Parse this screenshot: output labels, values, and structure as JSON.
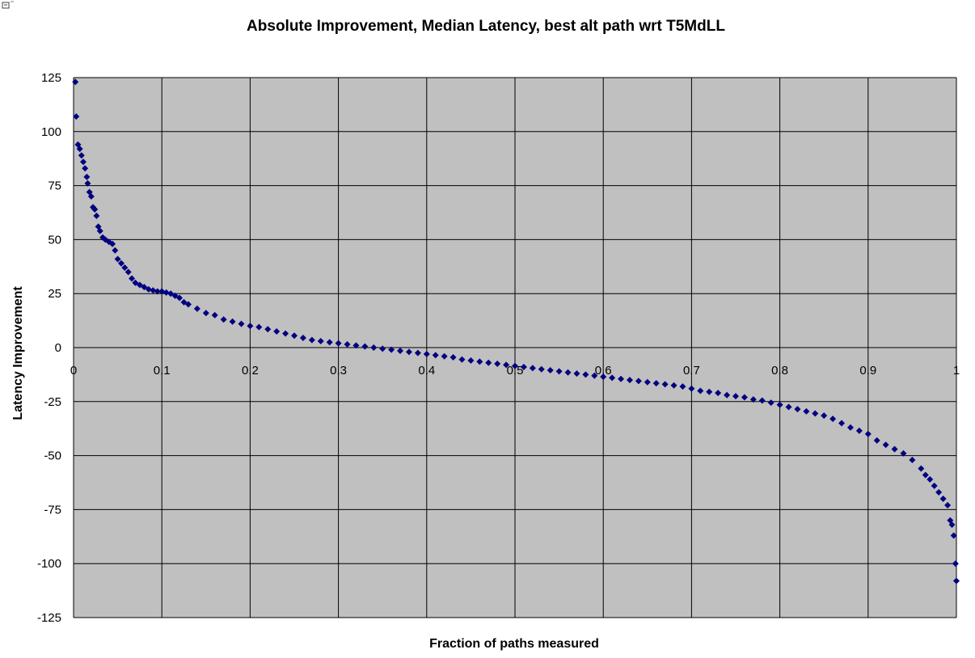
{
  "chart_data": {
    "type": "scatter",
    "title": "Absolute Improvement, Median Latency, best alt path wrt T5MdLL",
    "xlabel": "Fraction of paths measured",
    "ylabel": "Latency Improvement",
    "xlim": [
      0,
      1
    ],
    "ylim": [
      -125,
      125
    ],
    "x_ticks": [
      0,
      0.1,
      0.2,
      0.3,
      0.4,
      0.5,
      0.6,
      0.7,
      0.8,
      0.9,
      1
    ],
    "x_tick_labels": [
      "0",
      "0.1",
      "0.2",
      "0.3",
      "0.4",
      "0.5",
      "0.6",
      "0.7",
      "0.8",
      "0.9",
      "1"
    ],
    "y_ticks": [
      125,
      100,
      75,
      50,
      25,
      0,
      -25,
      -50,
      -75,
      -100,
      -125
    ],
    "y_tick_labels": [
      "125",
      "100",
      "75",
      "50",
      "25",
      "0",
      "-25",
      "-50",
      "-75",
      "-100",
      "-125"
    ],
    "grid": true,
    "legend": "none",
    "plot_background": "#C0C0C0",
    "marker_color": "#000080",
    "marker": "diamond",
    "points": [
      [
        0.002,
        123
      ],
      [
        0.003,
        107
      ],
      [
        0.005,
        94
      ],
      [
        0.007,
        92
      ],
      [
        0.009,
        89
      ],
      [
        0.011,
        86
      ],
      [
        0.013,
        83
      ],
      [
        0.015,
        79
      ],
      [
        0.016,
        76
      ],
      [
        0.018,
        72
      ],
      [
        0.02,
        70
      ],
      [
        0.022,
        65
      ],
      [
        0.024,
        64
      ],
      [
        0.026,
        61
      ],
      [
        0.028,
        56
      ],
      [
        0.03,
        54
      ],
      [
        0.033,
        51
      ],
      [
        0.036,
        50
      ],
      [
        0.04,
        49
      ],
      [
        0.044,
        48
      ],
      [
        0.047,
        45
      ],
      [
        0.05,
        41
      ],
      [
        0.054,
        39
      ],
      [
        0.058,
        37
      ],
      [
        0.062,
        35
      ],
      [
        0.066,
        32
      ],
      [
        0.07,
        30
      ],
      [
        0.075,
        29
      ],
      [
        0.08,
        28
      ],
      [
        0.085,
        27
      ],
      [
        0.09,
        26.5
      ],
      [
        0.095,
        26
      ],
      [
        0.1,
        26
      ],
      [
        0.105,
        25.5
      ],
      [
        0.11,
        25
      ],
      [
        0.115,
        24
      ],
      [
        0.12,
        23
      ],
      [
        0.125,
        21
      ],
      [
        0.13,
        20
      ],
      [
        0.14,
        18
      ],
      [
        0.15,
        16
      ],
      [
        0.16,
        15
      ],
      [
        0.17,
        13
      ],
      [
        0.18,
        12
      ],
      [
        0.19,
        11
      ],
      [
        0.2,
        10
      ],
      [
        0.21,
        9.5
      ],
      [
        0.22,
        8.5
      ],
      [
        0.23,
        7.5
      ],
      [
        0.24,
        6.5
      ],
      [
        0.25,
        5.5
      ],
      [
        0.26,
        4.5
      ],
      [
        0.27,
        3.5
      ],
      [
        0.28,
        3
      ],
      [
        0.29,
        2.5
      ],
      [
        0.3,
        2
      ],
      [
        0.31,
        1.5
      ],
      [
        0.32,
        1
      ],
      [
        0.33,
        0.5
      ],
      [
        0.34,
        0
      ],
      [
        0.35,
        -0.5
      ],
      [
        0.36,
        -1
      ],
      [
        0.37,
        -1.5
      ],
      [
        0.38,
        -2
      ],
      [
        0.39,
        -2.5
      ],
      [
        0.4,
        -3
      ],
      [
        0.41,
        -3.5
      ],
      [
        0.42,
        -4
      ],
      [
        0.43,
        -4.5
      ],
      [
        0.44,
        -5.5
      ],
      [
        0.45,
        -6
      ],
      [
        0.46,
        -6.5
      ],
      [
        0.47,
        -7
      ],
      [
        0.48,
        -7.5
      ],
      [
        0.49,
        -8
      ],
      [
        0.5,
        -8.5
      ],
      [
        0.51,
        -9
      ],
      [
        0.52,
        -9.5
      ],
      [
        0.53,
        -10
      ],
      [
        0.54,
        -10.5
      ],
      [
        0.55,
        -11
      ],
      [
        0.56,
        -11.5
      ],
      [
        0.57,
        -12
      ],
      [
        0.58,
        -12.5
      ],
      [
        0.59,
        -13
      ],
      [
        0.6,
        -13.5
      ],
      [
        0.61,
        -14
      ],
      [
        0.62,
        -14.5
      ],
      [
        0.63,
        -15
      ],
      [
        0.64,
        -15.5
      ],
      [
        0.65,
        -16
      ],
      [
        0.66,
        -16.5
      ],
      [
        0.67,
        -17
      ],
      [
        0.68,
        -17.5
      ],
      [
        0.69,
        -18
      ],
      [
        0.7,
        -19
      ],
      [
        0.71,
        -20
      ],
      [
        0.72,
        -20.5
      ],
      [
        0.73,
        -21
      ],
      [
        0.74,
        -22
      ],
      [
        0.75,
        -22.5
      ],
      [
        0.76,
        -23
      ],
      [
        0.77,
        -24
      ],
      [
        0.78,
        -24.5
      ],
      [
        0.79,
        -25.5
      ],
      [
        0.8,
        -26.5
      ],
      [
        0.81,
        -27.5
      ],
      [
        0.82,
        -28.5
      ],
      [
        0.83,
        -29.5
      ],
      [
        0.84,
        -30.5
      ],
      [
        0.85,
        -31.5
      ],
      [
        0.86,
        -33
      ],
      [
        0.87,
        -35
      ],
      [
        0.88,
        -37
      ],
      [
        0.89,
        -38.5
      ],
      [
        0.9,
        -40
      ],
      [
        0.91,
        -43
      ],
      [
        0.92,
        -45
      ],
      [
        0.93,
        -47
      ],
      [
        0.94,
        -49
      ],
      [
        0.95,
        -52
      ],
      [
        0.96,
        -56
      ],
      [
        0.965,
        -59
      ],
      [
        0.97,
        -61
      ],
      [
        0.975,
        -64
      ],
      [
        0.98,
        -67
      ],
      [
        0.985,
        -70
      ],
      [
        0.99,
        -73
      ],
      [
        0.993,
        -80
      ],
      [
        0.995,
        -82
      ],
      [
        0.997,
        -87
      ],
      [
        0.999,
        -100
      ],
      [
        1.0,
        -108
      ]
    ]
  }
}
